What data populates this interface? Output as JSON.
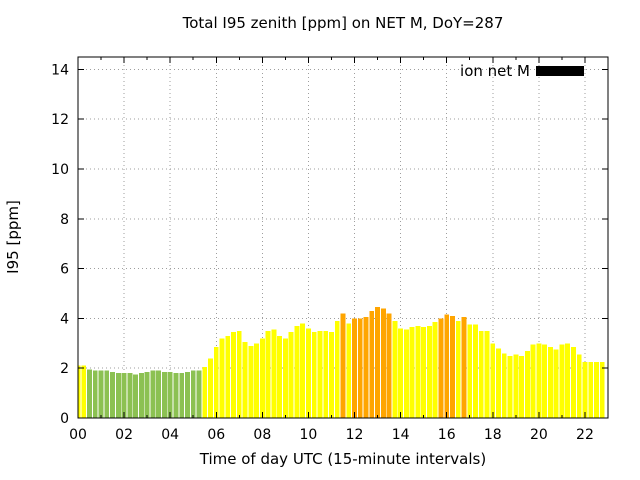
{
  "chart_data": {
    "type": "bar",
    "title": "Total I95 zenith [ppm] on NET M, DoY=287",
    "xlabel": "Time of day UTC (15-minute intervals)",
    "ylabel": "I95 [ppm]",
    "legend": {
      "label": "ion net M",
      "swatch_color": "#000000",
      "position": "top-right-inside"
    },
    "grid": "dotted",
    "grid_color": "#9e9e9e",
    "axis_color": "#000000",
    "background_color": "#ffffff",
    "x_hours_range": [
      0,
      23
    ],
    "ylim": [
      0,
      14.5
    ],
    "ytick_values": [
      0,
      2,
      4,
      6,
      8,
      10,
      12,
      14
    ],
    "xtick_major_hours": [
      0,
      2,
      4,
      6,
      8,
      10,
      12,
      14,
      16,
      18,
      20,
      22
    ],
    "xtick_minor_hours": [
      1,
      3,
      5,
      7,
      9,
      11,
      13,
      15,
      17,
      19,
      21,
      23
    ],
    "xtick_labels": [
      "00",
      "02",
      "04",
      "06",
      "08",
      "10",
      "12",
      "14",
      "16",
      "18",
      "20",
      "22"
    ],
    "interval_minutes": 15,
    "palette": {
      "green": "#8cc152",
      "yellow": "#ffff00",
      "orange": "#ffa500"
    },
    "color_rule": {
      "green_below": 2.0,
      "orange_at_or_above": 4.0
    },
    "series": [
      {
        "name": "ion net M",
        "times": [
          "00:00",
          "00:15",
          "00:30",
          "00:45",
          "01:00",
          "01:15",
          "01:30",
          "01:45",
          "02:00",
          "02:15",
          "02:30",
          "02:45",
          "03:00",
          "03:15",
          "03:30",
          "03:45",
          "04:00",
          "04:15",
          "04:30",
          "04:45",
          "05:00",
          "05:15",
          "05:30",
          "05:45",
          "06:00",
          "06:15",
          "06:30",
          "06:45",
          "07:00",
          "07:15",
          "07:30",
          "07:45",
          "08:00",
          "08:15",
          "08:30",
          "08:45",
          "09:00",
          "09:15",
          "09:30",
          "09:45",
          "10:00",
          "10:15",
          "10:30",
          "10:45",
          "11:00",
          "11:15",
          "11:30",
          "11:45",
          "12:00",
          "12:15",
          "12:30",
          "12:45",
          "13:00",
          "13:15",
          "13:30",
          "13:45",
          "14:00",
          "14:15",
          "14:30",
          "14:45",
          "15:00",
          "15:15",
          "15:30",
          "15:45",
          "16:00",
          "16:15",
          "16:30",
          "16:45",
          "17:00",
          "17:15",
          "17:30",
          "17:45",
          "18:00",
          "18:15",
          "18:30",
          "18:45",
          "19:00",
          "19:15",
          "19:30",
          "19:45",
          "20:00",
          "20:15",
          "20:30",
          "20:45",
          "21:00",
          "21:15",
          "21:30",
          "21:45",
          "22:00",
          "22:15",
          "22:30",
          "22:45"
        ],
        "values": [
          2.1,
          2.1,
          1.95,
          1.9,
          1.9,
          1.9,
          1.85,
          1.8,
          1.8,
          1.8,
          1.75,
          1.8,
          1.85,
          1.9,
          1.9,
          1.85,
          1.85,
          1.8,
          1.8,
          1.85,
          1.9,
          1.9,
          2.05,
          2.4,
          2.85,
          3.2,
          3.3,
          3.45,
          3.5,
          3.05,
          2.9,
          3.0,
          3.2,
          3.5,
          3.55,
          3.3,
          3.2,
          3.45,
          3.7,
          3.8,
          3.6,
          3.45,
          3.5,
          3.5,
          3.45,
          3.9,
          4.2,
          3.8,
          4.0,
          4.0,
          4.05,
          4.3,
          4.45,
          4.4,
          4.2,
          3.9,
          3.6,
          3.55,
          3.65,
          3.7,
          3.65,
          3.7,
          3.85,
          4.0,
          4.15,
          4.1,
          3.9,
          4.05,
          3.75,
          3.75,
          3.5,
          3.5,
          3.0,
          2.8,
          2.6,
          2.5,
          2.55,
          2.5,
          2.7,
          2.95,
          3.0,
          2.95,
          2.85,
          2.75,
          2.95,
          3.0,
          2.85,
          2.55,
          2.25,
          2.25,
          2.25,
          2.25
        ],
        "colors": [
          "yellow",
          "yellow",
          "green",
          "green",
          "green",
          "green",
          "green",
          "green",
          "green",
          "green",
          "green",
          "green",
          "green",
          "green",
          "green",
          "green",
          "green",
          "green",
          "green",
          "green",
          "green",
          "green",
          "yellow",
          "yellow",
          "yellow",
          "yellow",
          "yellow",
          "yellow",
          "yellow",
          "yellow",
          "yellow",
          "yellow",
          "yellow",
          "yellow",
          "yellow",
          "yellow",
          "yellow",
          "yellow",
          "yellow",
          "yellow",
          "yellow",
          "yellow",
          "yellow",
          "yellow",
          "yellow",
          "yellow",
          "orange",
          "yellow",
          "orange",
          "orange",
          "orange",
          "orange",
          "orange",
          "orange",
          "orange",
          "yellow",
          "yellow",
          "yellow",
          "yellow",
          "yellow",
          "yellow",
          "yellow",
          "yellow",
          "orange",
          "orange",
          "orange",
          "yellow",
          "orange",
          "yellow",
          "yellow",
          "yellow",
          "yellow",
          "yellow",
          "yellow",
          "yellow",
          "yellow",
          "yellow",
          "yellow",
          "yellow",
          "yellow",
          "yellow",
          "yellow",
          "yellow",
          "yellow",
          "yellow",
          "yellow",
          "yellow",
          "yellow",
          "yellow",
          "yellow",
          "yellow",
          "yellow"
        ]
      }
    ]
  }
}
